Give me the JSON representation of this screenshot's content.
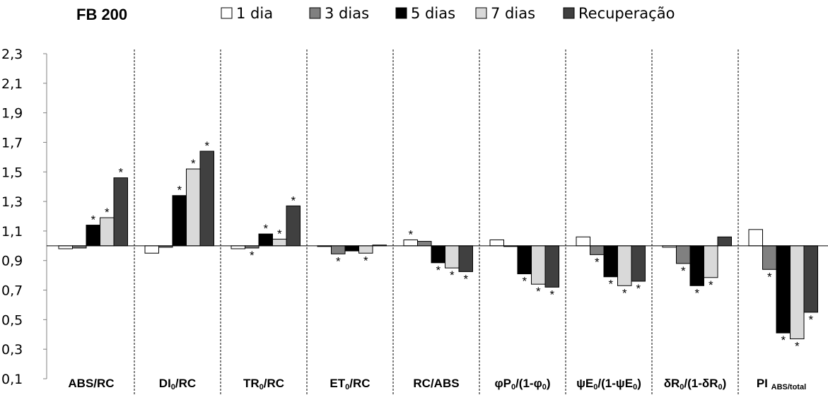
{
  "chart_data": {
    "type": "bar",
    "title": "FB 200",
    "ylim": [
      0.1,
      2.3
    ],
    "yticks": [
      "0,1",
      "0,3",
      "0,5",
      "0,7",
      "0,9",
      "1,1",
      "1,3",
      "1,5",
      "1,7",
      "1,9",
      "2,1",
      "2,3"
    ],
    "baseline": 1.0,
    "grid": false,
    "legend_position": "top",
    "categories": [
      {
        "main": "ABS/RC",
        "sub": "",
        "tail": ""
      },
      {
        "main": "DI",
        "sub": "0",
        "tail": "/RC"
      },
      {
        "main": "TR",
        "sub": "0",
        "tail": "/RC"
      },
      {
        "main": "ET",
        "sub": "0",
        "tail": "/RC"
      },
      {
        "main": "RC/ABS",
        "sub": "",
        "tail": ""
      },
      {
        "main": "φP",
        "sub": "0",
        "tail": "/(1-φ",
        "sub2": "0",
        "tail2": ")"
      },
      {
        "main": "ψE",
        "sub": "0",
        "tail": "/(1-ψE",
        "sub2": "0",
        "tail2": ")"
      },
      {
        "main": "δR",
        "sub": "0",
        "tail": "/(1-δR",
        "sub2": "0",
        "tail2": ")"
      },
      {
        "main": "PI ",
        "sub": "ABS/total",
        "tail": ""
      }
    ],
    "series": [
      {
        "name": "1 dia",
        "color": "#ffffff",
        "values": [
          0.98,
          0.95,
          0.98,
          0.995,
          1.04,
          1.04,
          1.06,
          0.99,
          1.11
        ]
      },
      {
        "name": "3 dias",
        "color": "#808080",
        "values": [
          0.985,
          0.99,
          0.985,
          0.945,
          1.03,
          0.995,
          0.94,
          0.88,
          0.84
        ]
      },
      {
        "name": "5 dias",
        "color": "#000000",
        "values": [
          1.14,
          1.34,
          1.08,
          0.965,
          0.885,
          0.81,
          0.79,
          0.73,
          0.41
        ]
      },
      {
        "name": "7 dias",
        "color": "#d9d9d9",
        "values": [
          1.19,
          1.52,
          1.045,
          0.95,
          0.85,
          0.74,
          0.73,
          0.785,
          0.37
        ]
      },
      {
        "name": "Recuperação",
        "color": "#404040",
        "values": [
          1.46,
          1.64,
          1.27,
          1.005,
          0.825,
          0.72,
          0.76,
          1.06,
          0.55
        ]
      }
    ],
    "significance_marks": [
      [
        false,
        false,
        true,
        true,
        true
      ],
      [
        false,
        false,
        true,
        true,
        true
      ],
      [
        false,
        true,
        true,
        true,
        true
      ],
      [
        false,
        true,
        false,
        true,
        false
      ],
      [
        true,
        false,
        true,
        true,
        true
      ],
      [
        false,
        false,
        true,
        true,
        true
      ],
      [
        false,
        true,
        true,
        true,
        true
      ],
      [
        false,
        true,
        true,
        true,
        false
      ],
      [
        false,
        true,
        true,
        true,
        true
      ]
    ],
    "annotation_symbol": "*"
  }
}
